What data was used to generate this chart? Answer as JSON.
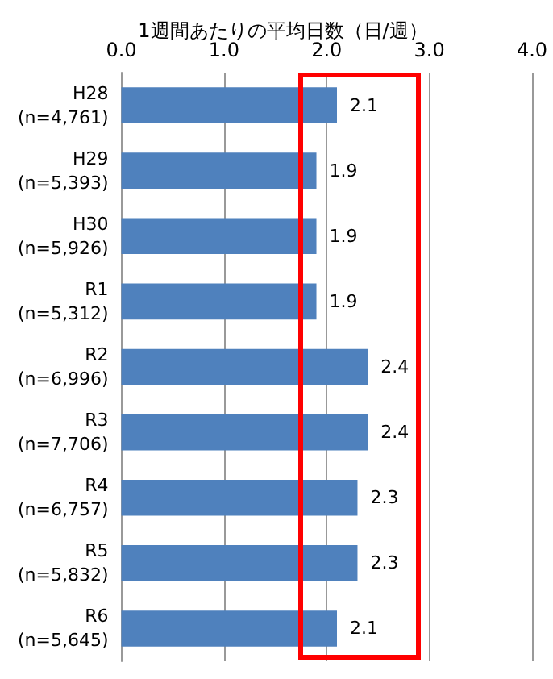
{
  "chart_data": {
    "type": "bar",
    "orientation": "horizontal",
    "title": "1週間あたりの平均日数（日/週）",
    "categories": [
      "H28\n(n=4,761)",
      "H29\n(n=5,393)",
      "H30\n(n=5,926)",
      "R1\n(n=5,312)",
      "R2\n(n=6,996)",
      "R3\n(n=7,706)",
      "R4\n(n=6,757)",
      "R5\n(n=5,832)",
      "R6\n(n=5,645)"
    ],
    "values": [
      2.1,
      1.9,
      1.9,
      1.9,
      2.4,
      2.4,
      2.3,
      2.3,
      2.1
    ],
    "color": "#4f81bd",
    "xlim": [
      0,
      4
    ],
    "xticks": [
      {
        "value": 0,
        "label": "0.0"
      },
      {
        "value": 1,
        "label": "1.0"
      },
      {
        "value": 2,
        "label": "2.0"
      },
      {
        "value": 3,
        "label": "3.0"
      },
      {
        "value": 4,
        "label": "4.0"
      }
    ],
    "grid": "x",
    "data_labels": true
  }
}
